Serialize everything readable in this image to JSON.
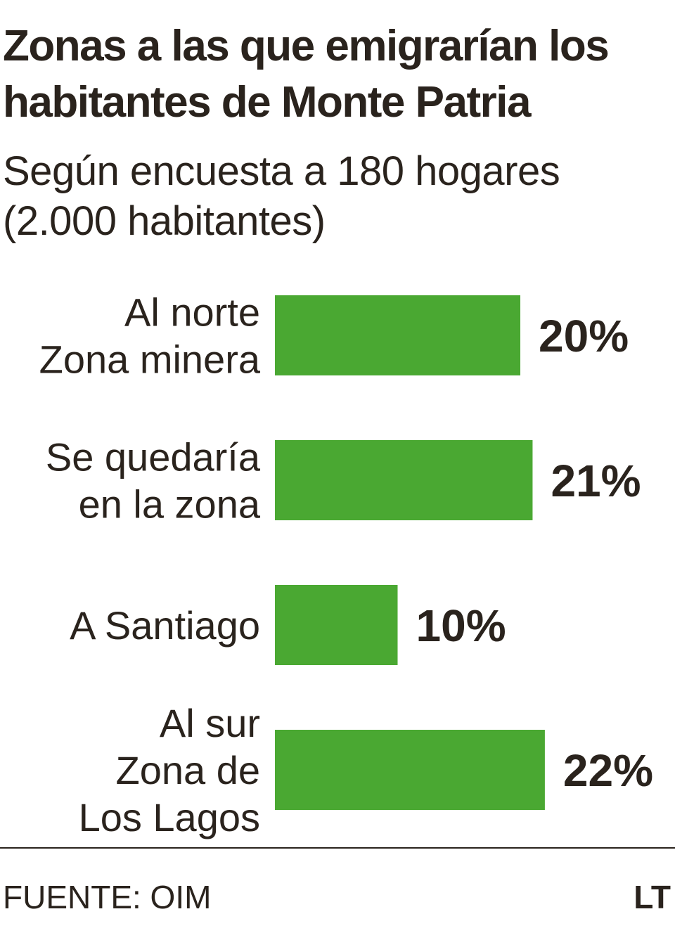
{
  "title": "Zonas a las que emigrarían los habitantes de Monte Patria",
  "subtitle": "Según encuesta a 180 hogares (2.000 habitantes)",
  "source": "FUENTE: OIM",
  "logo": "LT",
  "colors": {
    "bar": "#4aa832",
    "text": "#2a231d",
    "rule": "#2a231d"
  },
  "chart_data": {
    "type": "bar",
    "orientation": "horizontal",
    "categories": [
      [
        "Al norte",
        "Zona minera"
      ],
      [
        "Se quedaría",
        "en la zona"
      ],
      [
        "A Santiago"
      ],
      [
        "Al sur",
        "Zona de",
        "Los Lagos"
      ]
    ],
    "values": [
      20,
      21,
      10,
      22
    ],
    "value_labels": [
      "20%",
      "21%",
      "10%",
      "22%"
    ],
    "unit": "%",
    "title": "Zonas a las que emigrarían los habitantes de Monte Patria",
    "subtitle": "Según encuesta a 180 hogares (2.000 habitantes)",
    "xlabel": "",
    "ylabel": "",
    "grid": false,
    "legend": "none"
  }
}
